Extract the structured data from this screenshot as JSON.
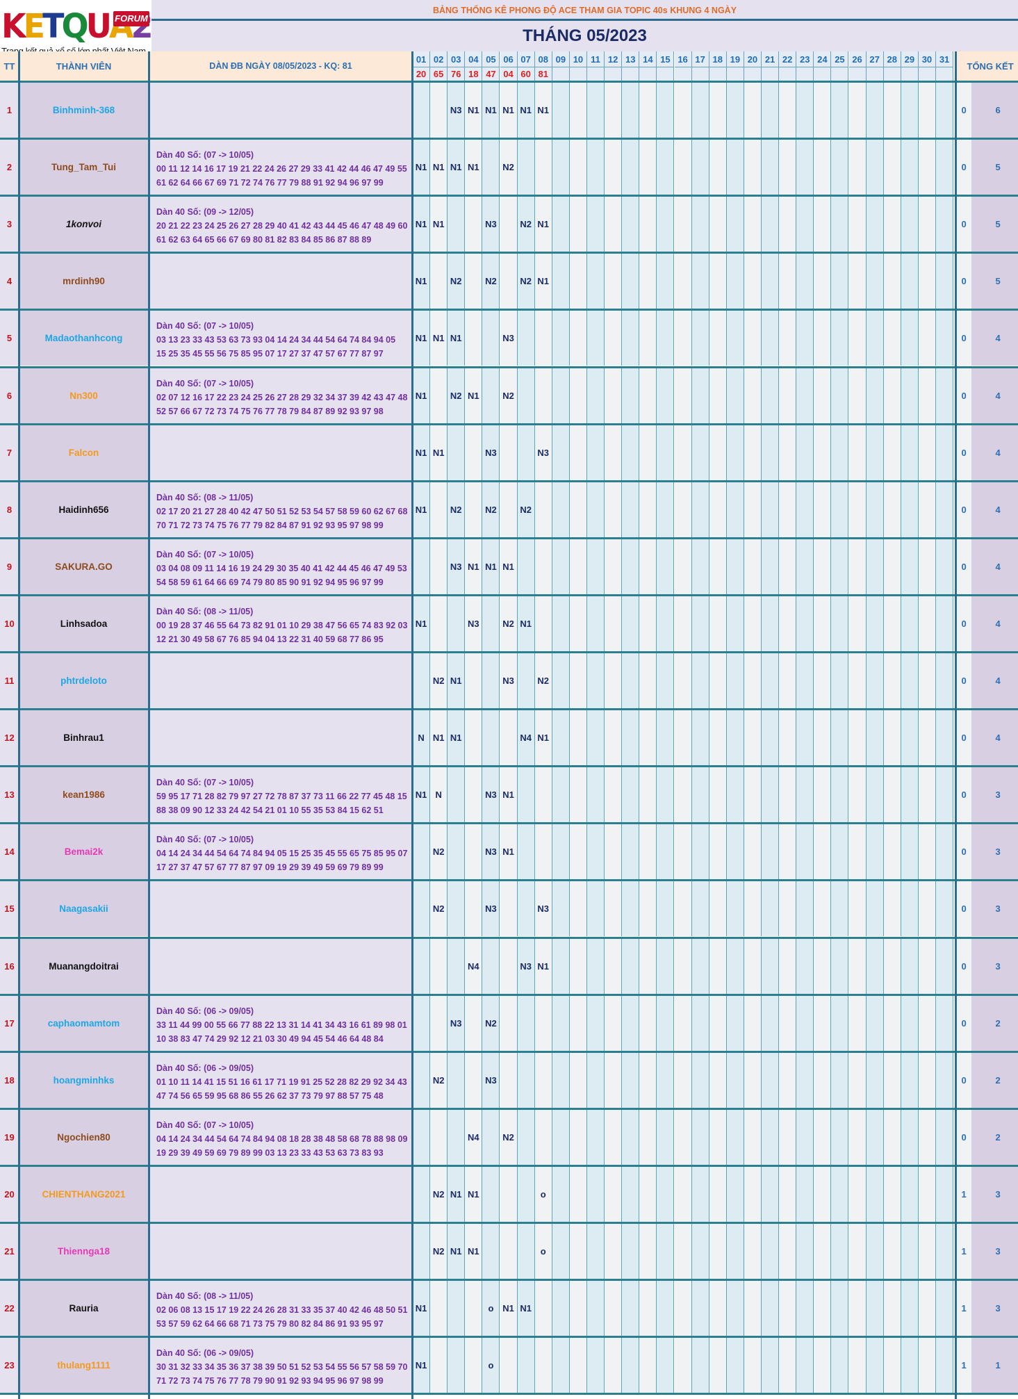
{
  "logo": {
    "letters": [
      "K",
      "E",
      "T",
      "Q",
      "U",
      "A",
      "2"
    ],
    "colors": [
      "#c8102e",
      "#e8a400",
      "#1f3b8f",
      "#1a8a3a",
      "#c8102e",
      "#e8a400",
      "#7a3ea0"
    ],
    "forum": "FORUM",
    "tagline": "Trang kết quả xổ số lớn nhất Việt Nam"
  },
  "title_top": "BẢNG THỐNG KÊ PHONG ĐỘ ACE THAM GIA TOPIC 40s KHUNG 4 NGÀY",
  "title_month": "THÁNG 05/2023",
  "headers": {
    "tt": "TT",
    "member": "THÀNH VIÊN",
    "dan": "DÀN ĐB NGÀY 08/05/2023 - KQ: 81",
    "total": "TỔNG KẾT"
  },
  "days": [
    "01",
    "02",
    "03",
    "04",
    "05",
    "06",
    "07",
    "08",
    "09",
    "10",
    "11",
    "12",
    "13",
    "14",
    "15",
    "16",
    "17",
    "18",
    "19",
    "20",
    "21",
    "22",
    "23",
    "24",
    "25",
    "26",
    "27",
    "28",
    "29",
    "30",
    "31"
  ],
  "results": [
    "20",
    "65",
    "76",
    "18",
    "47",
    "04",
    "60",
    "81",
    "",
    "",
    "",
    "",
    "",
    "",
    "",
    "",
    "",
    "",
    "",
    "",
    "",
    "",
    "",
    "",
    "",
    "",
    "",
    "",
    "",
    "",
    ""
  ],
  "rows": [
    {
      "tt": "1",
      "name": "Binhminh-368",
      "color": "#1ea7e4",
      "italic": false,
      "dan": [],
      "marks": [
        "",
        "",
        "N3",
        "N1",
        "N1",
        "N1",
        "N1",
        "N1"
      ],
      "t1": "0",
      "t2": "6"
    },
    {
      "tt": "2",
      "name": "Tung_Tam_Tui",
      "color": "#8e4b1c",
      "italic": false,
      "dan": [
        "Dàn 40 Số: (07 -> 10/05)",
        "00 11 12 14 16 17 19 21 22 24 26 27 29 33 41 42 44 46 47 49 55",
        "61 62 64 66 67 69 71 72 74 76 77 79 88 91 92 94 96 97 99"
      ],
      "marks": [
        "N1",
        "N1",
        "N1",
        "N1",
        "",
        "N2",
        "",
        ""
      ],
      "t1": "0",
      "t2": "5"
    },
    {
      "tt": "3",
      "name": "1konvoi",
      "color": "#111111",
      "italic": true,
      "dan": [
        "Dàn 40 Số: (09 -> 12/05)",
        "20 21 22 23 24 25 26 27 28 29 40 41 42 43 44 45 46 47 48 49 60",
        "61 62 63 64 65 66 67 69 80 81 82 83 84 85 86 87 88 89"
      ],
      "marks": [
        "N1",
        "N1",
        "",
        "",
        "N3",
        "",
        "N2",
        "N1"
      ],
      "t1": "0",
      "t2": "5"
    },
    {
      "tt": "4",
      "name": "mrdinh90",
      "color": "#8e4b1c",
      "italic": false,
      "dan": [],
      "marks": [
        "N1",
        "",
        "N2",
        "",
        "N2",
        "",
        "N2",
        "N1"
      ],
      "t1": "0",
      "t2": "5"
    },
    {
      "tt": "5",
      "name": "Madaothanhcong",
      "color": "#1ea7e4",
      "italic": false,
      "dan": [
        "Dàn 40 Số: (07 -> 10/05)",
        "03 13 23 33 43 53 63 73 93 04 14 24 34 44 54 64 74 84 94 05",
        "15 25 35 45 55 56 75 85 95 07 17 27 37 47 57 67 77 87 97"
      ],
      "marks": [
        "N1",
        "N1",
        "N1",
        "",
        "",
        "N3",
        "",
        ""
      ],
      "t1": "0",
      "t2": "4"
    },
    {
      "tt": "6",
      "name": "Nn300",
      "color": "#f39a1e",
      "italic": false,
      "dan": [
        "Dàn 40 Số: (07 -> 10/05)",
        "02 07 12 16 17 22 23 24 25 26 27 28 29 32 34 37 39 42 43 47 48",
        "52 57 66 67 72 73 74 75 76 77 78 79 84 87 89 92 93 97 98"
      ],
      "marks": [
        "N1",
        "",
        "N2",
        "N1",
        "",
        "N2",
        "",
        ""
      ],
      "t1": "0",
      "t2": "4"
    },
    {
      "tt": "7",
      "name": "Falcon",
      "color": "#f39a1e",
      "italic": false,
      "dan": [],
      "marks": [
        "N1",
        "N1",
        "",
        "",
        "N3",
        "",
        "",
        "N3"
      ],
      "t1": "0",
      "t2": "4"
    },
    {
      "tt": "8",
      "name": "Haidinh656",
      "color": "#111111",
      "italic": false,
      "dan": [
        "Dàn 40 Số: (08 -> 11/05)",
        "02 17 20 21 27 28 40 42 47 50 51 52 53 54 57 58 59 60 62 67 68",
        "70 71 72 73 74 75 76 77 79 82 84 87 91 92 93 95 97 98 99"
      ],
      "marks": [
        "N1",
        "",
        "N2",
        "",
        "N2",
        "",
        "N2",
        ""
      ],
      "t1": "0",
      "t2": "4"
    },
    {
      "tt": "9",
      "name": "SAKURA.GO",
      "color": "#8e4b1c",
      "italic": false,
      "dan": [
        "Dàn 40 Số: (07 -> 10/05)",
        "03 04 08 09 11 14 16 19 24 29 30 35 40 41 42 44 45 46 47 49 53",
        "54 58 59 61 64 66 69 74 79 80 85 90 91 92 94 95 96 97 99"
      ],
      "marks": [
        "",
        "",
        "N3",
        "N1",
        "N1",
        "N1",
        "",
        ""
      ],
      "t1": "0",
      "t2": "4"
    },
    {
      "tt": "10",
      "name": "Linhsadoa",
      "color": "#111111",
      "italic": false,
      "dan": [
        "Dàn 40 Số: (08 -> 11/05)",
        "00 19 28 37 46 55 64 73 82 91 01 10 29 38 47 56 65 74 83 92 03",
        "12 21 30 49 58 67 76 85 94 04 13 22 31 40 59 68 77 86 95"
      ],
      "marks": [
        "N1",
        "",
        "",
        "N3",
        "",
        "N2",
        "N1",
        ""
      ],
      "t1": "0",
      "t2": "4"
    },
    {
      "tt": "11",
      "name": "phtrdeloto",
      "color": "#1ea7e4",
      "italic": false,
      "dan": [],
      "marks": [
        "",
        "N2",
        "N1",
        "",
        "",
        "N3",
        "",
        "N2"
      ],
      "t1": "0",
      "t2": "4"
    },
    {
      "tt": "12",
      "name": "Binhrau1",
      "color": "#111111",
      "italic": false,
      "dan": [],
      "marks": [
        "N",
        "N1",
        "N1",
        "",
        "",
        "",
        "N4",
        "N1"
      ],
      "t1": "0",
      "t2": "4"
    },
    {
      "tt": "13",
      "name": "kean1986",
      "color": "#8e4b1c",
      "italic": false,
      "dan": [
        "Dàn 40 Số: (07 -> 10/05)",
        "59 95 17 71 28 82 79 97 27 72 78 87 37 73 11 66 22 77 45 48 15",
        "88 38 09 90 12 33 24 42 54 21 01 10 55 35 53 84 15 62 51"
      ],
      "marks": [
        "N1",
        "N",
        "",
        "",
        "N3",
        "N1",
        "",
        ""
      ],
      "t1": "0",
      "t2": "3"
    },
    {
      "tt": "14",
      "name": "Bemai2k",
      "color": "#e43bb4",
      "italic": false,
      "dan": [
        "Dàn 40 Số: (07 -> 10/05)",
        "04 14 24 34 44 54 64 74 84 94 05 15 25 35 45 55 65 75 85 95 07",
        "17 27 37 47 57 67 77 87 97 09 19 29 39 49 59 69 79 89 99"
      ],
      "marks": [
        "",
        "N2",
        "",
        "",
        "N3",
        "N1",
        "",
        ""
      ],
      "t1": "0",
      "t2": "3"
    },
    {
      "tt": "15",
      "name": "Naagasakii",
      "color": "#1ea7e4",
      "italic": false,
      "dan": [],
      "marks": [
        "",
        "N2",
        "",
        "",
        "N3",
        "",
        "",
        "N3"
      ],
      "t1": "0",
      "t2": "3"
    },
    {
      "tt": "16",
      "name": "Muanangdoitrai",
      "color": "#111111",
      "italic": false,
      "dan": [],
      "marks": [
        "",
        "",
        "",
        "N4",
        "",
        "",
        "N3",
        "N1"
      ],
      "t1": "0",
      "t2": "3"
    },
    {
      "tt": "17",
      "name": "caphaomamtom",
      "color": "#1ea7e4",
      "italic": false,
      "dan": [
        "Dàn 40 Số: (06 -> 09/05)",
        "33 11 44 99 00 55 66 77 88 22 13 31 14 41 34 43 16 61 89 98 01",
        "10 38 83 47 74 29 92 12 21 03 30 49 94 45 54 46 64 48 84"
      ],
      "marks": [
        "",
        "",
        "N3",
        "",
        "N2",
        "",
        "",
        ""
      ],
      "t1": "0",
      "t2": "2"
    },
    {
      "tt": "18",
      "name": "hoangminhks",
      "color": "#1ea7e4",
      "italic": false,
      "dan": [
        "Dàn 40 Số: (06 -> 09/05)",
        "01 10 11 14 41 15 51 16 61 17 71 19 91 25 52 28 82 29 92 34 43",
        "47 74 56 65 59 95 68 86 55 26 62 37 73 79 97 88 57 75 48"
      ],
      "marks": [
        "",
        "N2",
        "",
        "",
        "N3",
        "",
        "",
        ""
      ],
      "t1": "0",
      "t2": "2"
    },
    {
      "tt": "19",
      "name": "Ngochien80",
      "color": "#8e4b1c",
      "italic": false,
      "dan": [
        "Dàn 40 Số: (07 -> 10/05)",
        "04 14 24 34 44 54 64 74 84 94 08 18 28 38 48 58 68 78 88 98 09",
        "19 29 39 49 59 69 79 89 99 03 13 23 33 43 53 63 73 83 93"
      ],
      "marks": [
        "",
        "",
        "",
        "N4",
        "",
        "N2",
        "",
        ""
      ],
      "t1": "0",
      "t2": "2"
    },
    {
      "tt": "20",
      "name": "CHIENTHANG2021",
      "color": "#f39a1e",
      "italic": false,
      "dan": [],
      "marks": [
        "",
        "N2",
        "N1",
        "N1",
        "",
        "",
        "",
        "o"
      ],
      "t1": "1",
      "t2": "3"
    },
    {
      "tt": "21",
      "name": "Thiennga18",
      "color": "#e43bb4",
      "italic": false,
      "dan": [],
      "marks": [
        "",
        "N2",
        "N1",
        "N1",
        "",
        "",
        "",
        "o"
      ],
      "t1": "1",
      "t2": "3"
    },
    {
      "tt": "22",
      "name": "Rauria",
      "color": "#111111",
      "italic": false,
      "dan": [
        "Dàn 40 Số: (08 -> 11/05)",
        "02 06 08 13 15 17 19 22 24 26 28 31 33 35 37 40 42 46 48 50 51",
        "53 57 59 62 64 66 68 71 73 75 79 80 82 84 86 91 93 95 97"
      ],
      "marks": [
        "N1",
        "",
        "",
        "",
        "o",
        "N1",
        "N1",
        ""
      ],
      "t1": "1",
      "t2": "3"
    },
    {
      "tt": "23",
      "name": "thulang1111",
      "color": "#f39a1e",
      "italic": false,
      "dan": [
        "Dàn 40 Số: (06 -> 09/05)",
        "30 31 32 33 34 35 36 37 38 39 50 51 52 53 54 55 56 57 58 59 70",
        "71 72 73 74 75 76 77 78 79 90 91 92 93 94 95 96 97 98 99"
      ],
      "marks": [
        "N1",
        "",
        "",
        "",
        "o",
        "",
        "",
        ""
      ],
      "t1": "1",
      "t2": "1"
    }
  ]
}
